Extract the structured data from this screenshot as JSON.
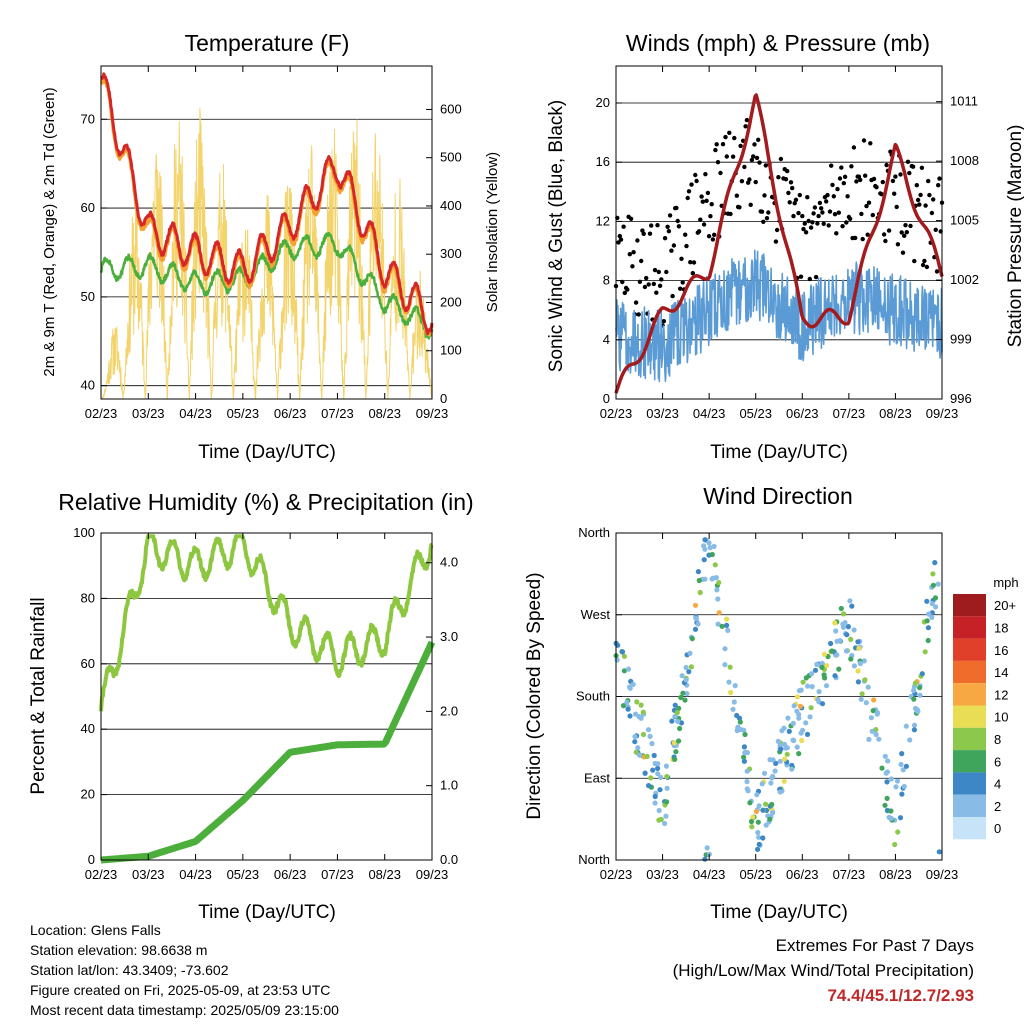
{
  "colors": {
    "temp_2m": "#d62728",
    "temp_9m": "#f5a030",
    "dewpoint": "#4caf3c",
    "solar": "#f3d36a",
    "gust": "#000000",
    "wind": "#5b9bd5",
    "pressure": "#a31b1f",
    "rh": "#8dc63f",
    "precip": "#4caf3c",
    "extremes_text": "#c0282a"
  },
  "x_tick_labels": [
    "02/23",
    "03/23",
    "04/23",
    "05/23",
    "06/23",
    "07/23",
    "08/23",
    "09/23"
  ],
  "footer": {
    "location": "Location: Glens Falls",
    "elevation": "Station elevation: 98.6638 m",
    "latlon": "Station lat/lon: 43.3409; -73.602",
    "created": "Figure created on Fri, 2025-05-09, at 23:53 UTC",
    "recent": "Most recent data timestamp: 2025/05/09 23:15:00"
  },
  "extremes": {
    "heading": "Extremes For Past 7 Days",
    "subheading": "(High/Low/Max Wind/Total Precipitation)",
    "values": "74.4/45.1/12.7/2.93"
  },
  "chart_data": [
    {
      "type": "line",
      "title": "Temperature (F)",
      "xlabel": "Time (Day/UTC)",
      "ylabel": "2m & 9m T (Red, Orange) & 2m Td (Green)",
      "ylabel_right": "Solar Insolation (Yellow)",
      "x": [
        "02/23",
        "03/23",
        "04/23",
        "05/23",
        "06/23",
        "07/23",
        "08/23",
        "09/23"
      ],
      "ylim": [
        38.5,
        76
      ],
      "ylim_right": [
        0,
        690
      ],
      "yticks": [
        40,
        50,
        60,
        70
      ],
      "yticks_right": [
        0,
        100,
        200,
        300,
        400,
        500,
        600
      ],
      "grid": true,
      "series": [
        {
          "name": "2m T",
          "color": "#d62728",
          "values": [
            74.5,
            57.5,
            55.0,
            53.0,
            58.0,
            65.0,
            53.0,
            47.5
          ]
        },
        {
          "name": "9m T",
          "color": "#f5a030",
          "values": [
            74.0,
            57.0,
            54.5,
            52.5,
            57.5,
            64.5,
            52.5,
            47.3
          ]
        },
        {
          "name": "2m Td",
          "color": "#4caf3c",
          "values": [
            53.0,
            53.5,
            51.5,
            52.0,
            55.5,
            56.0,
            49.5,
            46.5
          ]
        },
        {
          "name": "Solar Insolation",
          "color": "#f3d36a",
          "axis": "right",
          "values": [
            0,
            600,
            630,
            400,
            480,
            600,
            620,
            160
          ]
        }
      ]
    },
    {
      "type": "line",
      "title": "Winds (mph) & Pressure (mb)",
      "xlabel": "Time (Day/UTC)",
      "ylabel": "Sonic Wind & Gust (Blue, Black)",
      "ylabel_right": "Station Pressure (Maroon)",
      "x": [
        "02/23",
        "03/23",
        "04/23",
        "05/23",
        "06/23",
        "07/23",
        "08/23",
        "09/23"
      ],
      "ylim": [
        0,
        22.5
      ],
      "ylim_right": [
        996,
        1012.8
      ],
      "yticks": [
        0,
        4,
        8,
        12,
        16,
        20
      ],
      "yticks_right": [
        996,
        999,
        1002,
        1005,
        1008,
        1011
      ],
      "grid": true,
      "series": [
        {
          "name": "Gust",
          "color": "#000000",
          "values": [
            8.0,
            7.0,
            12.0,
            15.0,
            9.0,
            13.0,
            12.0,
            10.0
          ]
        },
        {
          "name": "Sonic Wind",
          "color": "#5b9bd5",
          "values": [
            4.5,
            3.5,
            6.0,
            8.0,
            5.0,
            7.0,
            6.0,
            5.0
          ]
        },
        {
          "name": "Station Pressure",
          "color": "#a31b1f",
          "axis": "right",
          "values": [
            996.3,
            1000.3,
            1002.5,
            1011.2,
            1000.0,
            1000.2,
            1008.5,
            1002.3
          ]
        }
      ]
    },
    {
      "type": "line",
      "title": "Relative Humidity (%) & Precipitation (in)",
      "xlabel": "Time (Day/UTC)",
      "ylabel": "Percent & Total Rainfall",
      "x": [
        "02/23",
        "03/23",
        "04/23",
        "05/23",
        "06/23",
        "07/23",
        "08/23",
        "09/23"
      ],
      "ylim": [
        0,
        100
      ],
      "ylim_right": [
        0,
        4.4
      ],
      "yticks": [
        0,
        20,
        40,
        60,
        80,
        100
      ],
      "yticks_right": [
        0,
        1,
        2,
        3,
        4
      ],
      "yticklabels_right": [
        "0.0",
        "1.0",
        "2.0",
        "3.0",
        "4.0"
      ],
      "grid": true,
      "series": [
        {
          "name": "Relative Humidity",
          "color": "#8dc63f",
          "values": [
            46,
            96,
            90,
            97,
            72,
            62,
            68,
            98
          ]
        },
        {
          "name": "Total Precipitation",
          "color": "#4caf3c",
          "axis": "right",
          "values": [
            0.0,
            0.05,
            0.25,
            0.8,
            1.45,
            1.55,
            1.56,
            2.93
          ]
        }
      ]
    },
    {
      "type": "scatter",
      "title": "Wind Direction",
      "xlabel": "Time (Day/UTC)",
      "ylabel": "Direction (Colored By Speed)",
      "x": [
        "02/23",
        "03/23",
        "04/23",
        "05/23",
        "06/23",
        "07/23",
        "08/23",
        "09/23"
      ],
      "ylim": [
        0,
        360
      ],
      "yticks": [
        0,
        90,
        180,
        270,
        360
      ],
      "yticklabels": [
        "North",
        "East",
        "South",
        "West",
        "North"
      ],
      "grid": true,
      "colorbar": {
        "unit": "mph",
        "labels": [
          "20+",
          "18",
          "16",
          "14",
          "12",
          "10",
          "8",
          "6",
          "4",
          "2",
          "0"
        ],
        "colors": [
          "#9e1b1e",
          "#c52126",
          "#e0402a",
          "#f06c2b",
          "#f7a843",
          "#e9dd55",
          "#8cc84b",
          "#3fa55c",
          "#3d87c6",
          "#88bce6",
          "#c6e3f7"
        ]
      },
      "series": [
        {
          "name": "Wind Direction",
          "values": [
            225,
            60,
            355,
            40,
            160,
            260,
            45,
            355
          ]
        }
      ]
    }
  ]
}
